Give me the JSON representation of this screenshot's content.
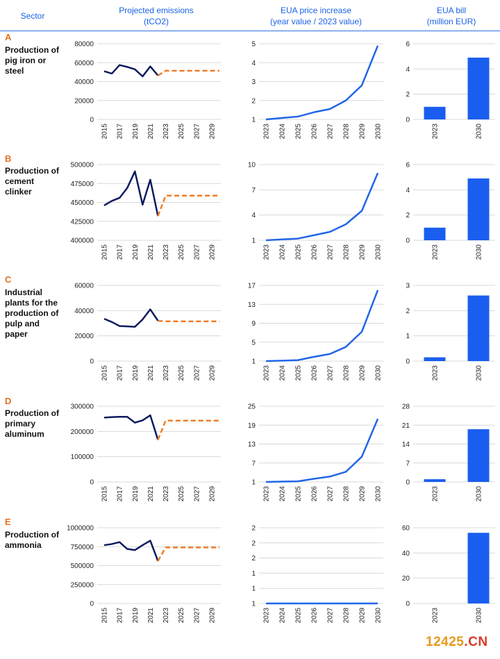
{
  "headers": {
    "sector": "Sector",
    "emissions": "Projected emissions\n(tCO2)",
    "price": "EUA price increase\n(year value / 2023 value)",
    "bill": "EUA bill\n(million EUR)"
  },
  "colors": {
    "header_text": "#1a63e6",
    "letter": "#e07024",
    "historic_line": "#0f1b5e",
    "projected_line": "#ef7d28",
    "price_line": "#2166e8",
    "bill_bar": "#1a5ef0"
  },
  "watermark": {
    "part1": "12425",
    "part2": ".CN"
  },
  "rows": [
    {
      "letter": "A",
      "name": "Production of pig iron or steel"
    },
    {
      "letter": "B",
      "name": "Production of cement clinker"
    },
    {
      "letter": "C",
      "name": "Industrial plants for the production of pulp and paper"
    },
    {
      "letter": "D",
      "name": "Production of primary aluminum"
    },
    {
      "letter": "E",
      "name": "Production of ammonia"
    }
  ],
  "chart_data": [
    {
      "type": "line",
      "row": "A",
      "x": [
        2015,
        2016,
        2017,
        2018,
        2019,
        2020,
        2021,
        2022,
        2023,
        2024,
        2025,
        2026,
        2027,
        2028,
        2029,
        2030
      ],
      "x_tick_labels": [
        "2015",
        "2017",
        "2019",
        "2021",
        "2023",
        "2025",
        "2027",
        "2029"
      ],
      "y_tick_labels": [
        "0",
        "20000",
        "40000",
        "60000",
        "80000"
      ],
      "ylim": [
        0,
        80000
      ],
      "series": [
        {
          "style": "historic",
          "x": [
            2015,
            2016,
            2017,
            2018,
            2019,
            2020,
            2021,
            2022
          ],
          "values": [
            51000,
            48500,
            57500,
            55500,
            53000,
            45500,
            56000,
            46500
          ]
        },
        {
          "style": "projected",
          "x": [
            2022,
            2023,
            2024,
            2025,
            2026,
            2027,
            2028,
            2029,
            2030
          ],
          "values": [
            46500,
            51500,
            51500,
            51500,
            51500,
            51500,
            51500,
            51500,
            51500
          ]
        }
      ]
    },
    {
      "type": "line",
      "row": "A",
      "x": [
        2023,
        2024,
        2025,
        2026,
        2027,
        2028,
        2029,
        2030
      ],
      "x_tick_labels": [
        "2023",
        "2024",
        "2025",
        "2026",
        "2027",
        "2028",
        "2029",
        "2030"
      ],
      "y_tick_labels": [
        "1",
        "2",
        "3",
        "4",
        "5"
      ],
      "ylim": [
        1,
        5
      ],
      "values": [
        1.0,
        1.08,
        1.15,
        1.38,
        1.55,
        2.0,
        2.8,
        4.9
      ]
    },
    {
      "type": "bar",
      "row": "A",
      "categories": [
        "2023",
        "2030"
      ],
      "values": [
        1.0,
        4.9
      ],
      "y_tick_labels": [
        "0",
        "2",
        "4",
        "6"
      ],
      "ylim": [
        0,
        6
      ]
    },
    {
      "type": "line",
      "row": "B",
      "x": [
        2015,
        2016,
        2017,
        2018,
        2019,
        2020,
        2021,
        2022,
        2023,
        2024,
        2025,
        2026,
        2027,
        2028,
        2029,
        2030
      ],
      "x_tick_labels": [
        "2015",
        "2017",
        "2019",
        "2021",
        "2023",
        "2025",
        "2027",
        "2029"
      ],
      "y_tick_labels": [
        "400000",
        "425000",
        "450000",
        "475000",
        "500000"
      ],
      "ylim": [
        400000,
        500000
      ],
      "series": [
        {
          "style": "historic",
          "x": [
            2015,
            2016,
            2017,
            2018,
            2019,
            2020,
            2021,
            2022
          ],
          "values": [
            446000,
            452000,
            456000,
            469000,
            491000,
            447000,
            480000,
            432000
          ]
        },
        {
          "style": "projected",
          "x": [
            2022,
            2023,
            2024,
            2025,
            2026,
            2027,
            2028,
            2029,
            2030
          ],
          "values": [
            432000,
            459000,
            459000,
            459000,
            459000,
            459000,
            459000,
            459000,
            459000
          ]
        }
      ]
    },
    {
      "type": "line",
      "row": "B",
      "x": [
        2023,
        2024,
        2025,
        2026,
        2027,
        2028,
        2029,
        2030
      ],
      "x_tick_labels": [
        "2023",
        "2024",
        "2025",
        "2026",
        "2027",
        "2028",
        "2029",
        "2030"
      ],
      "y_tick_labels": [
        "1",
        "4",
        "7",
        "10"
      ],
      "ylim": [
        1,
        10
      ],
      "values": [
        1.0,
        1.1,
        1.2,
        1.6,
        2.0,
        2.9,
        4.5,
        9.0
      ]
    },
    {
      "type": "bar",
      "row": "B",
      "categories": [
        "2023",
        "2030"
      ],
      "values": [
        1.0,
        4.9
      ],
      "y_tick_labels": [
        "0",
        "2",
        "4",
        "6"
      ],
      "ylim": [
        0,
        6
      ]
    },
    {
      "type": "line",
      "row": "C",
      "x": [
        2015,
        2016,
        2017,
        2018,
        2019,
        2020,
        2021,
        2022,
        2023,
        2024,
        2025,
        2026,
        2027,
        2028,
        2029,
        2030
      ],
      "x_tick_labels": [
        "2015",
        "2017",
        "2019",
        "2021",
        "2023",
        "2025",
        "2027",
        "2029"
      ],
      "y_tick_labels": [
        "0",
        "20000",
        "40000",
        "60000"
      ],
      "ylim": [
        0,
        60000
      ],
      "series": [
        {
          "style": "historic",
          "x": [
            2015,
            2016,
            2017,
            2018,
            2019,
            2020,
            2021,
            2022
          ],
          "values": [
            33500,
            31000,
            27800,
            27500,
            27200,
            33000,
            41000,
            32000
          ]
        },
        {
          "style": "projected",
          "x": [
            2022,
            2023,
            2024,
            2025,
            2026,
            2027,
            2028,
            2029,
            2030
          ],
          "values": [
            32000,
            31500,
            31500,
            31500,
            31500,
            31500,
            31500,
            31500,
            31500
          ]
        }
      ]
    },
    {
      "type": "line",
      "row": "C",
      "x": [
        2023,
        2024,
        2025,
        2026,
        2027,
        2028,
        2029,
        2030
      ],
      "x_tick_labels": [
        "2023",
        "2024",
        "2025",
        "2026",
        "2027",
        "2028",
        "2029",
        "2030"
      ],
      "y_tick_labels": [
        "1",
        "5",
        "9",
        "13",
        "17"
      ],
      "ylim": [
        1,
        17
      ],
      "values": [
        1.0,
        1.1,
        1.2,
        1.9,
        2.5,
        4.0,
        7.2,
        16.0
      ]
    },
    {
      "type": "bar",
      "row": "C",
      "categories": [
        "2023",
        "2030"
      ],
      "values": [
        0.15,
        2.6
      ],
      "y_tick_labels": [
        "0",
        "1",
        "2",
        "3"
      ],
      "ylim": [
        0,
        3
      ]
    },
    {
      "type": "line",
      "row": "D",
      "x": [
        2015,
        2016,
        2017,
        2018,
        2019,
        2020,
        2021,
        2022,
        2023,
        2024,
        2025,
        2026,
        2027,
        2028,
        2029,
        2030
      ],
      "x_tick_labels": [
        "2015",
        "2017",
        "2019",
        "2021",
        "2023",
        "2025",
        "2027",
        "2029"
      ],
      "y_tick_labels": [
        "0",
        "100000",
        "200000",
        "300000"
      ],
      "ylim": [
        0,
        300000
      ],
      "series": [
        {
          "style": "historic",
          "x": [
            2015,
            2016,
            2017,
            2018,
            2019,
            2020,
            2021,
            2022
          ],
          "values": [
            255000,
            257000,
            258000,
            258000,
            235000,
            244000,
            264000,
            167000
          ]
        },
        {
          "style": "projected",
          "x": [
            2022,
            2023,
            2024,
            2025,
            2026,
            2027,
            2028,
            2029,
            2030
          ],
          "values": [
            167000,
            243000,
            243000,
            243000,
            243000,
            243000,
            243000,
            243000,
            243000
          ]
        }
      ]
    },
    {
      "type": "line",
      "row": "D",
      "x": [
        2023,
        2024,
        2025,
        2026,
        2027,
        2028,
        2029,
        2030
      ],
      "x_tick_labels": [
        "2023",
        "2024",
        "2025",
        "2026",
        "2027",
        "2028",
        "2029",
        "2030"
      ],
      "y_tick_labels": [
        "1",
        "7",
        "13",
        "19",
        "25"
      ],
      "ylim": [
        1,
        25
      ],
      "values": [
        1.0,
        1.1,
        1.2,
        2.0,
        2.7,
        4.2,
        9.0,
        21.0
      ]
    },
    {
      "type": "bar",
      "row": "D",
      "categories": [
        "2023",
        "2030"
      ],
      "values": [
        1.0,
        19.5
      ],
      "y_tick_labels": [
        "0",
        "7",
        "14",
        "21",
        "28"
      ],
      "ylim": [
        0,
        28
      ]
    },
    {
      "type": "line",
      "row": "E",
      "x": [
        2015,
        2016,
        2017,
        2018,
        2019,
        2020,
        2021,
        2022,
        2023,
        2024,
        2025,
        2026,
        2027,
        2028,
        2029,
        2030
      ],
      "x_tick_labels": [
        "2015",
        "2017",
        "2019",
        "2021",
        "2023",
        "2025",
        "2027",
        "2029"
      ],
      "y_tick_labels": [
        "0",
        "250000",
        "500000",
        "750000",
        "1000000"
      ],
      "ylim": [
        0,
        1000000
      ],
      "series": [
        {
          "style": "historic",
          "x": [
            2015,
            2016,
            2017,
            2018,
            2019,
            2020,
            2021,
            2022
          ],
          "values": [
            770000,
            785000,
            810000,
            720000,
            705000,
            770000,
            830000,
            560000
          ]
        },
        {
          "style": "projected",
          "x": [
            2022,
            2023,
            2024,
            2025,
            2026,
            2027,
            2028,
            2029,
            2030
          ],
          "values": [
            560000,
            740000,
            740000,
            740000,
            740000,
            740000,
            740000,
            740000,
            740000
          ]
        }
      ]
    },
    {
      "type": "line",
      "row": "E",
      "x": [
        2023,
        2024,
        2025,
        2026,
        2027,
        2028,
        2029,
        2030
      ],
      "x_tick_labels": [
        "2023",
        "2024",
        "2025",
        "2026",
        "2027",
        "2028",
        "2029",
        "2030"
      ],
      "y_tick_labels": [
        "1",
        "1",
        "1",
        "2",
        "2",
        "2"
      ],
      "ylim": [
        1,
        2
      ],
      "values": [
        1,
        1,
        1,
        1,
        1,
        1,
        1,
        1
      ]
    },
    {
      "type": "bar",
      "row": "E",
      "categories": [
        "2023",
        "2030"
      ],
      "values": [
        0,
        56
      ],
      "y_tick_labels": [
        "0",
        "20",
        "40",
        "60"
      ],
      "ylim": [
        0,
        60
      ]
    }
  ]
}
